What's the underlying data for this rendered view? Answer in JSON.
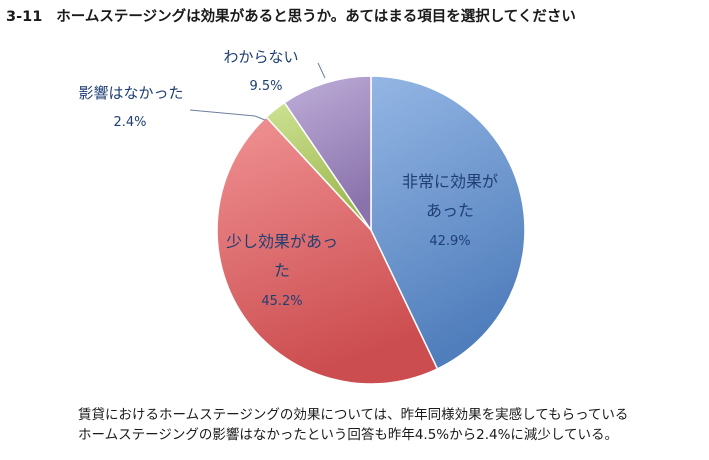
{
  "title": {
    "number": "3-11",
    "text": "ホームステージングは効果があると思うか。あてはまる項目を選択してください"
  },
  "chart_data": {
    "type": "pie",
    "start": "12 o'clock, clockwise",
    "slices": [
      {
        "label_lines": [
          "非常に効果が",
          "あった"
        ],
        "value": 42.9,
        "display": "42.9%",
        "color": "#5b8fd6",
        "label_color": "#1f3f73"
      },
      {
        "label_lines": [
          "少し効果があっ",
          "た"
        ],
        "value": 45.2,
        "display": "45.2%",
        "color": "#e8585a",
        "label_color": "#1f3f73"
      },
      {
        "label_lines": [
          "影響はなかった"
        ],
        "value": 2.4,
        "display": "2.4%",
        "color": "#b4d25a",
        "label_color": "#1f3f73"
      },
      {
        "label_lines": [
          "わからない"
        ],
        "value": 9.5,
        "display": "9.5%",
        "color": "#9d83c4",
        "label_color": "#1f3f73"
      }
    ]
  },
  "caption": {
    "line1": "賃貸におけるホームステージングの効果については、昨年同様効果を実感してもらっている",
    "line2": "ホームステージングの影響はなかったという回答も昨年4.5%から2.4%に減少している。"
  }
}
